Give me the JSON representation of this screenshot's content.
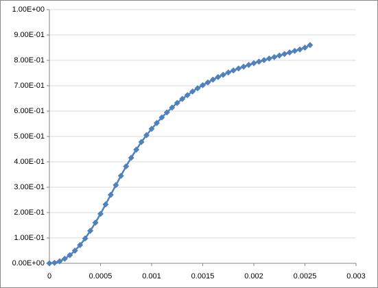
{
  "chart_data": {
    "type": "scatter",
    "x": [
      0,
      5e-05,
      0.0001,
      0.00015,
      0.0002,
      0.00025,
      0.0003,
      0.00035,
      0.0004,
      0.00045,
      0.0005,
      0.00055,
      0.0006,
      0.00065,
      0.0007,
      0.00075,
      0.0008,
      0.00085,
      0.0009,
      0.00095,
      0.001,
      0.00105,
      0.0011,
      0.00115,
      0.0012,
      0.00125,
      0.0013,
      0.00135,
      0.0014,
      0.00145,
      0.0015,
      0.00155,
      0.0016,
      0.00165,
      0.0017,
      0.00175,
      0.0018,
      0.00185,
      0.0019,
      0.00195,
      0.002,
      0.00205,
      0.0021,
      0.00215,
      0.0022,
      0.00225,
      0.0023,
      0.00235,
      0.0024,
      0.00245,
      0.0025,
      0.00255
    ],
    "values": [
      0,
      0.002,
      0.008,
      0.018,
      0.032,
      0.05,
      0.072,
      0.098,
      0.128,
      0.16,
      0.195,
      0.232,
      0.27,
      0.308,
      0.345,
      0.382,
      0.416,
      0.448,
      0.478,
      0.505,
      0.53,
      0.553,
      0.575,
      0.595,
      0.614,
      0.632,
      0.648,
      0.663,
      0.677,
      0.69,
      0.702,
      0.713,
      0.724,
      0.734,
      0.743,
      0.752,
      0.76,
      0.768,
      0.775,
      0.782,
      0.789,
      0.795,
      0.801,
      0.807,
      0.813,
      0.819,
      0.825,
      0.831,
      0.837,
      0.843,
      0.85,
      0.86
    ],
    "color": "#4f81bd",
    "xlim": [
      0,
      0.003
    ],
    "xticks": [
      0,
      0.0005,
      0.001,
      0.0015,
      0.002,
      0.0025,
      0.003
    ],
    "ylim": [
      0,
      1
    ],
    "yticks": [
      {
        "value": 0,
        "label": "0.00E+00"
      },
      {
        "value": 0.1,
        "label": "1.00E-01"
      },
      {
        "value": 0.2,
        "label": "2.00E-01"
      },
      {
        "value": 0.3,
        "label": "3.00E-01"
      },
      {
        "value": 0.4,
        "label": "4.00E-01"
      },
      {
        "value": 0.5,
        "label": "5.00E-01"
      },
      {
        "value": 0.6,
        "label": "6.00E-01"
      },
      {
        "value": 0.7,
        "label": "7.00E-01"
      },
      {
        "value": 0.8,
        "label": "8.00E-01"
      },
      {
        "value": 0.9,
        "label": "9.00E-01"
      },
      {
        "value": 1,
        "label": "1.00E+00"
      }
    ],
    "grid": true
  }
}
